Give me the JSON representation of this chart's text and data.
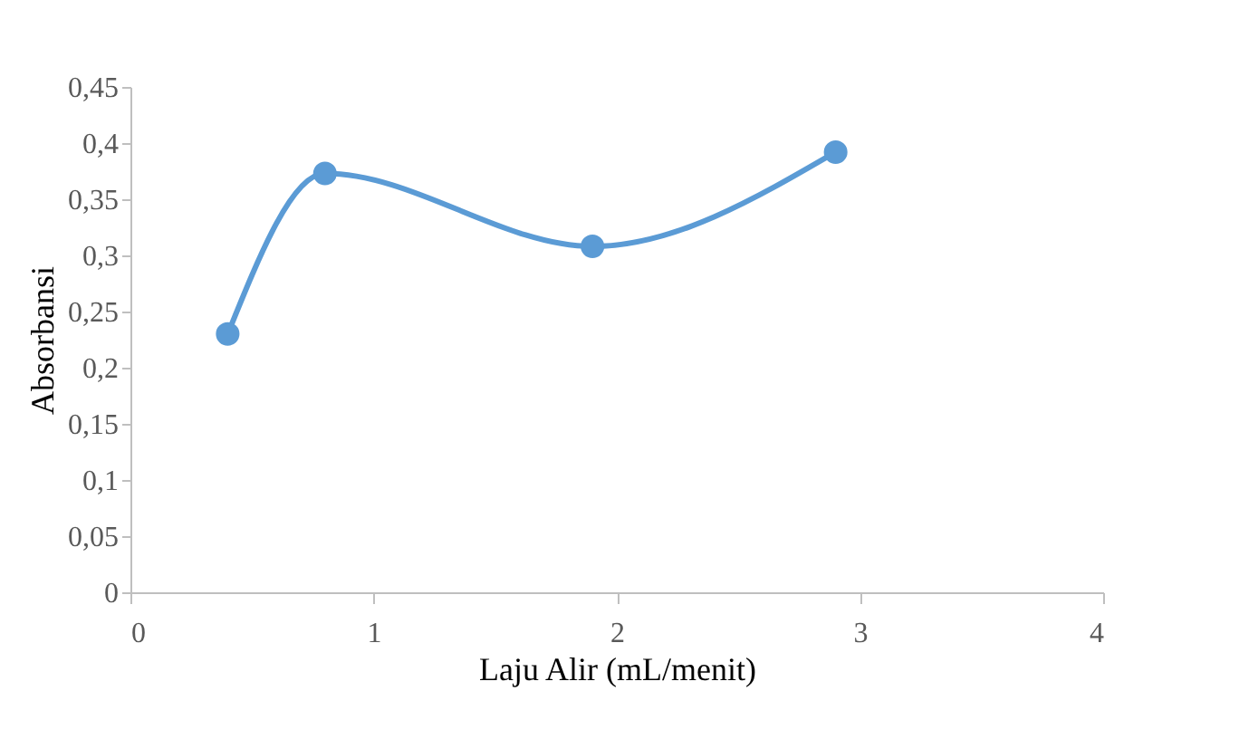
{
  "chart_data": {
    "type": "line",
    "xlabel": "Laju Alir (mL/menit)",
    "ylabel": "Absorbansi",
    "x": [
      0.4,
      0.8,
      1.9,
      2.9
    ],
    "series": [
      {
        "color": "#5b9bd5",
        "values": [
          0.23,
          0.373,
          0.308,
          0.392
        ]
      }
    ],
    "xlim": [
      0,
      4
    ],
    "xticks": [
      0,
      1,
      2,
      3,
      4
    ],
    "ylim": [
      0,
      0.45
    ],
    "yticks": [
      0,
      {
        "value": 0.05,
        "label": "0,05"
      },
      {
        "value": 0.1,
        "label": "0,1"
      },
      {
        "value": 0.15,
        "label": "0,15"
      },
      {
        "value": 0.2,
        "label": "0,2"
      },
      {
        "value": 0.25,
        "label": "0,25"
      },
      {
        "value": 0.3,
        "label": "0,3"
      },
      {
        "value": 0.35,
        "label": "0,35"
      },
      {
        "value": 0.4,
        "label": "0,4"
      },
      {
        "value": 0.45,
        "label": "0,45"
      }
    ],
    "grid": false,
    "marker": "circle",
    "line_style": "solid"
  }
}
